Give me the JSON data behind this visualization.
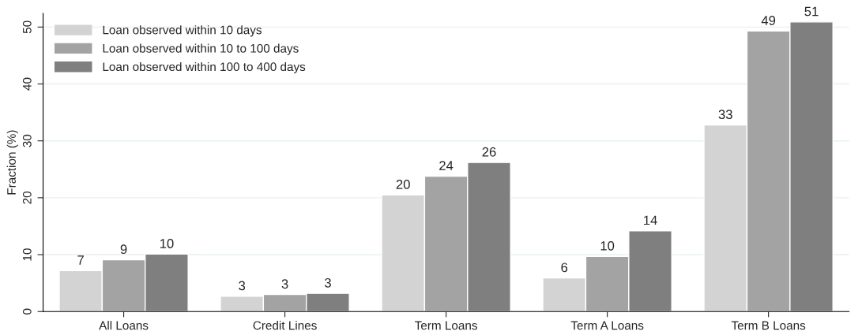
{
  "chart_data": {
    "type": "bar",
    "ylabel": "Fraction (%)",
    "categories": [
      "All Loans",
      "Credit Lines",
      "Term Loans",
      "Term A Loans",
      "Term B Loans"
    ],
    "series": [
      {
        "name": "Loan observed within 10 days",
        "color": "#d3d3d3",
        "values": [
          7.2,
          2.7,
          20.5,
          5.9,
          32.8
        ],
        "value_labels": [
          "7",
          "3",
          "20",
          "6",
          "33"
        ]
      },
      {
        "name": "Loan observed within 10 to 100 days",
        "color": "#a3a3a3",
        "values": [
          9.1,
          3.0,
          23.8,
          9.7,
          49.3
        ],
        "value_labels": [
          "9",
          "3",
          "24",
          "10",
          "49"
        ]
      },
      {
        "name": "Loan observed within 100 to 400 days",
        "color": "#7f7f7f",
        "values": [
          10.1,
          3.2,
          26.2,
          14.2,
          50.9
        ],
        "value_labels": [
          "10",
          "3",
          "26",
          "14",
          "51"
        ]
      }
    ],
    "ylim": [
      0,
      52.4
    ],
    "yticks": [
      0,
      10,
      20,
      30,
      40,
      50
    ],
    "grid": "y",
    "legend": "top left"
  }
}
